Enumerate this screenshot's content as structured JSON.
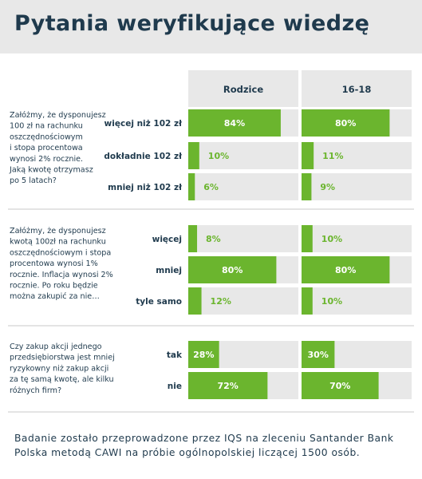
{
  "title": "Pytania weryfikujące wiedzę",
  "footnote": "Badanie zostało przeprowadzone przez IQS na zleceniu Santander Bank Polska metodą CAWI na próbie ogólnopolskiej liczącej 1500 osób.",
  "colors": {
    "bar": "#6bb52e",
    "track": "#e8e8e8",
    "text": "#1f3a4d",
    "rule": "#c8c8c8"
  },
  "chart_data": {
    "type": "bar",
    "orientation": "horizontal",
    "unit": "%",
    "xlim": [
      0,
      100
    ],
    "columns": [
      "Rodzice",
      "16-18"
    ],
    "questions": [
      {
        "text_lines": [
          "Załóżmy, że dysponujesz",
          "100 zł na rachunku",
          "oszczędnościowym",
          "i stopa procentowa",
          "wynosi 2% rocznie.",
          "Jaką kwotę otrzymasz",
          "po 5 latach?"
        ],
        "categories": [
          "więcej niż 102 zł",
          "dokładnie 102 zł",
          "mniej niż 102 zł"
        ],
        "series": [
          {
            "name": "Rodzice",
            "values": [
              84,
              10,
              6
            ]
          },
          {
            "name": "16-18",
            "values": [
              80,
              11,
              9
            ]
          }
        ]
      },
      {
        "text_lines": [
          "Załóżmy, że dysponujesz",
          "kwotą 100zł na rachunku",
          "oszczędnościowym i stopa",
          "procentowa wynosi 1%",
          "rocznie. Inflacja wynosi 2%",
          "rocznie. Po roku będzie",
          "można zakupić za nie…"
        ],
        "categories": [
          "więcej",
          "mniej",
          "tyle samo"
        ],
        "series": [
          {
            "name": "Rodzice",
            "values": [
              8,
              80,
              12
            ]
          },
          {
            "name": "16-18",
            "values": [
              10,
              80,
              10
            ]
          }
        ]
      },
      {
        "text_lines": [
          "Czy zakup akcji jednego",
          "przedsiębiorstwa jest mniej",
          "ryzykowny niż zakup akcji",
          "za tę samą kwotę, ale kilku",
          "różnych firm?"
        ],
        "categories": [
          "tak",
          "nie"
        ],
        "series": [
          {
            "name": "Rodzice",
            "values": [
              28,
              72
            ]
          },
          {
            "name": "16-18",
            "values": [
              30,
              70
            ]
          }
        ]
      }
    ]
  }
}
